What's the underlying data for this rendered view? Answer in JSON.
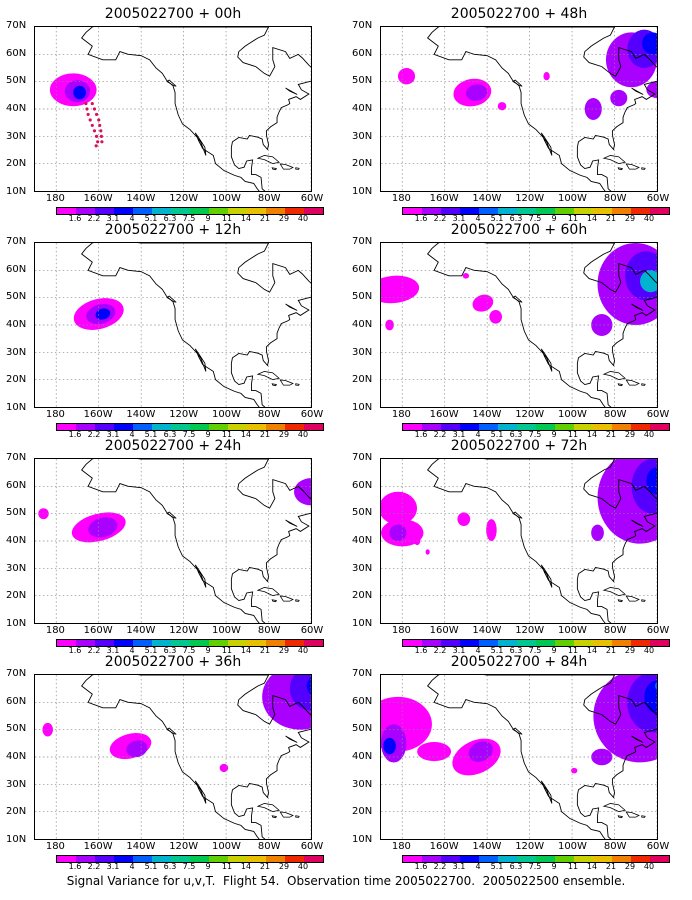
{
  "caption": "Signal Variance for u,v,T.  Flight 54.  Observation time 2005022700.  2005022500 ensemble.",
  "lat_labels": [
    "70N",
    "60N",
    "50N",
    "40N",
    "30N",
    "20N",
    "10N"
  ],
  "lon_labels": [
    "180",
    "160W",
    "140W",
    "120W",
    "100W",
    "80W",
    "60W"
  ],
  "colorbar": {
    "labels": [
      "1.6",
      "2.2",
      "3.1",
      "4",
      "5.1",
      "6.3",
      "7.5",
      "9",
      "11",
      "14",
      "21",
      "29",
      "40"
    ],
    "colors": [
      "#ff00ff",
      "#aa00ff",
      "#5500ff",
      "#0000ff",
      "#0060ff",
      "#00b4d0",
      "#00c890",
      "#00c850",
      "#60d000",
      "#c8d200",
      "#e8c000",
      "#f08000",
      "#f02800",
      "#e00060"
    ]
  },
  "panels": [
    {
      "title": "2005022700 + 00h"
    },
    {
      "title": "2005022700 + 48h"
    },
    {
      "title": "2005022700 + 12h"
    },
    {
      "title": "2005022700 + 60h"
    },
    {
      "title": "2005022700 + 24h"
    },
    {
      "title": "2005022700 + 72h"
    },
    {
      "title": "2005022700 + 36h"
    },
    {
      "title": "2005022700 + 84h"
    }
  ]
}
